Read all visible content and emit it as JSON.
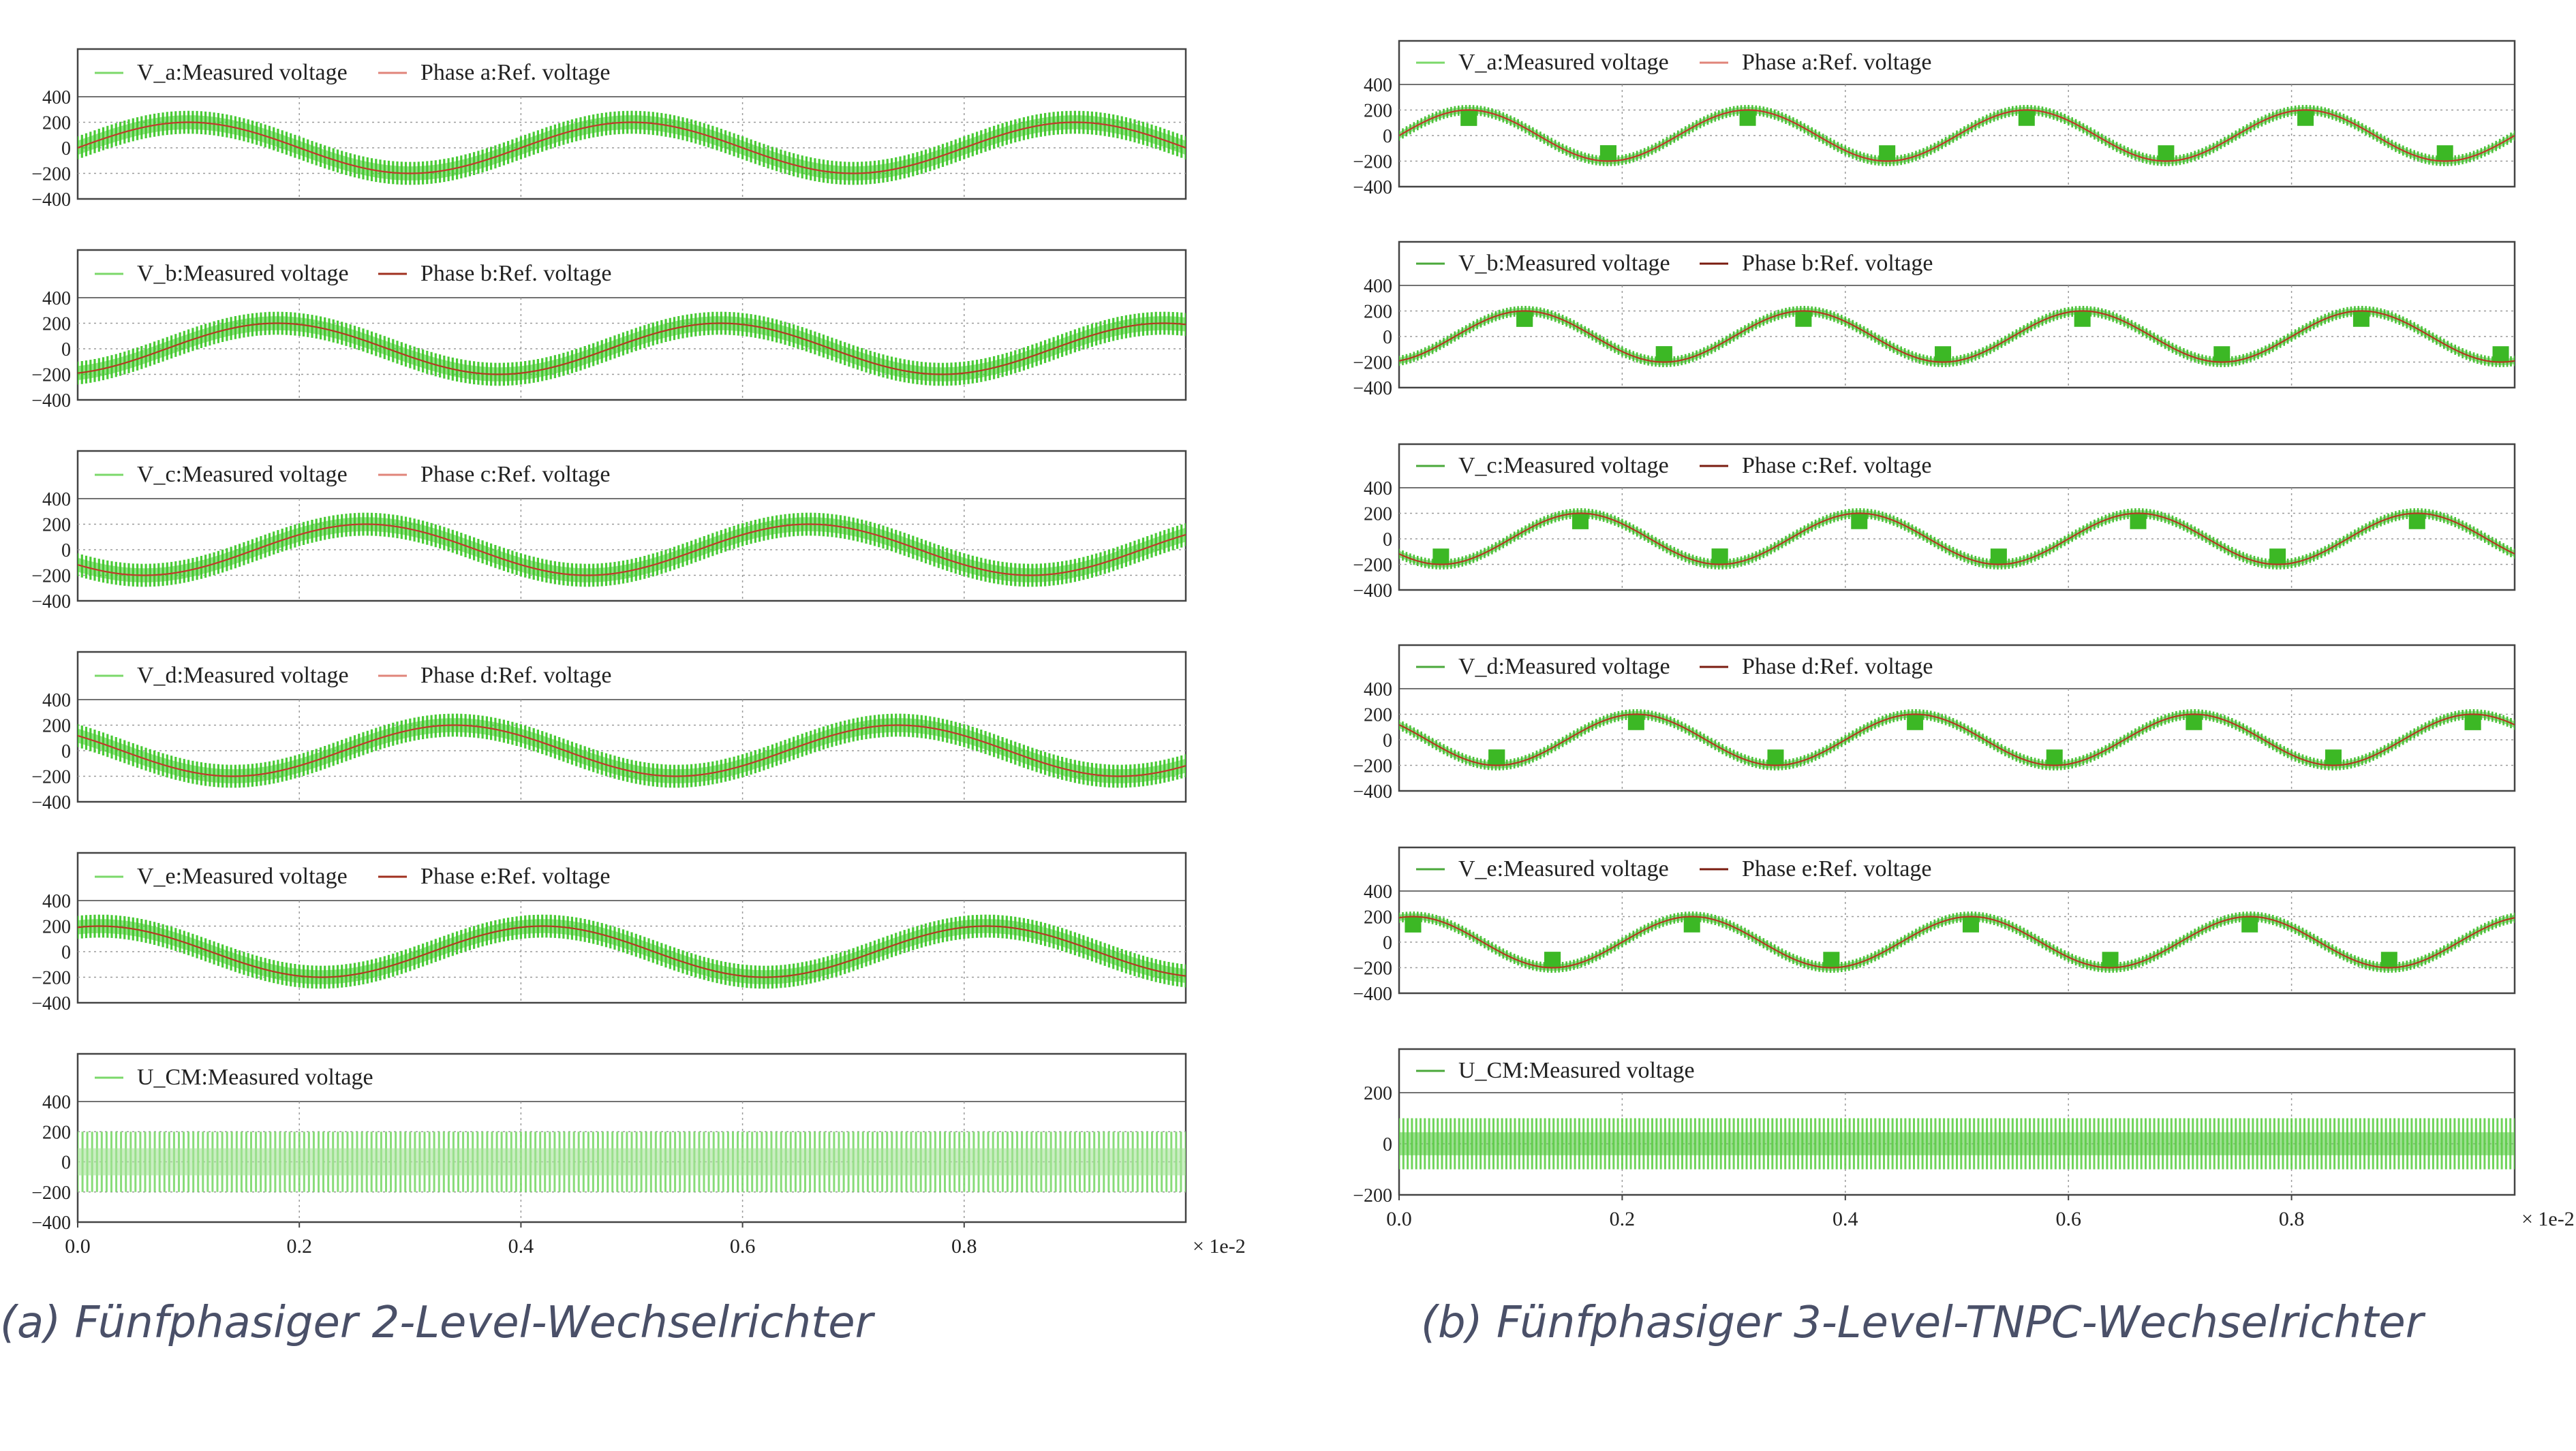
{
  "captions": {
    "left": "(a) Fünfphasiger 2-Level-Wechselrichter",
    "right": "(b) Fünfphasiger 3-Level-TNPC-Wechselrichter"
  },
  "colors": {
    "measured": "#3fc72a",
    "measured_legend": "#7bd86a",
    "reference": "#c0392b",
    "reference_dark": "#7a1c10",
    "grid": "#9a9a9a",
    "frame": "#444444",
    "caption": "#4a5068"
  },
  "chart_data": [
    {
      "type": "line",
      "title": "(a) Fünfphasiger 2-Level-Wechselrichter",
      "x_range": [
        0.0,
        1.0
      ],
      "x_ticks": [
        "0.0",
        "0.2",
        "0.4",
        "0.6",
        "0.8"
      ],
      "x_multiplier": "× 1e-2",
      "fundamental_period": 0.4,
      "panels": [
        {
          "ylim": [
            -400,
            400
          ],
          "y_ticks": [
            "400",
            "200",
            "0",
            "−200",
            "−400"
          ],
          "grid": true,
          "legend": [
            {
              "label": "V_a:Measured voltage",
              "color": "#7bd86a"
            },
            {
              "label": "Phase a:Ref. voltage",
              "color": "#e0847a"
            }
          ],
          "series": [
            {
              "name": "V_a:Measured voltage",
              "kind": "measured_pwm",
              "amplitude": 200,
              "phase_deg": 0,
              "levels": 2,
              "envelope": 300
            },
            {
              "name": "Phase a:Ref. voltage",
              "kind": "sine",
              "amplitude": 200,
              "phase_deg": 0
            }
          ]
        },
        {
          "ylim": [
            -400,
            400
          ],
          "y_ticks": [
            "400",
            "200",
            "0",
            "−200",
            "−400"
          ],
          "grid": true,
          "legend": [
            {
              "label": "V_b:Measured voltage",
              "color": "#7bd86a"
            },
            {
              "label": "Phase b:Ref. voltage",
              "color": "#a0301f"
            }
          ],
          "series": [
            {
              "name": "V_b:Measured voltage",
              "kind": "measured_pwm",
              "amplitude": 200,
              "phase_deg": -72,
              "levels": 2,
              "envelope": 300
            },
            {
              "name": "Phase b:Ref. voltage",
              "kind": "sine",
              "amplitude": 200,
              "phase_deg": -72
            }
          ]
        },
        {
          "ylim": [
            -400,
            400
          ],
          "y_ticks": [
            "400",
            "200",
            "0",
            "−200",
            "−400"
          ],
          "grid": true,
          "legend": [
            {
              "label": "V_c:Measured voltage",
              "color": "#7bd86a"
            },
            {
              "label": "Phase c:Ref. voltage",
              "color": "#e0847a"
            }
          ],
          "series": [
            {
              "name": "V_c:Measured voltage",
              "kind": "measured_pwm",
              "amplitude": 200,
              "phase_deg": -144,
              "levels": 2,
              "envelope": 300
            },
            {
              "name": "Phase c:Ref. voltage",
              "kind": "sine",
              "amplitude": 200,
              "phase_deg": -144
            }
          ]
        },
        {
          "ylim": [
            -400,
            400
          ],
          "y_ticks": [
            "400",
            "200",
            "0",
            "−200",
            "−400"
          ],
          "grid": true,
          "legend": [
            {
              "label": "V_d:Measured voltage",
              "color": "#7bd86a"
            },
            {
              "label": "Phase d:Ref. voltage",
              "color": "#e0847a"
            }
          ],
          "series": [
            {
              "name": "V_d:Measured voltage",
              "kind": "measured_pwm",
              "amplitude": 200,
              "phase_deg": 144,
              "levels": 2,
              "envelope": 300
            },
            {
              "name": "Phase d:Ref. voltage",
              "kind": "sine",
              "amplitude": 200,
              "phase_deg": 144
            }
          ]
        },
        {
          "ylim": [
            -400,
            400
          ],
          "y_ticks": [
            "400",
            "200",
            "0",
            "−200",
            "−400"
          ],
          "grid": true,
          "legend": [
            {
              "label": "V_e:Measured voltage",
              "color": "#7bd86a"
            },
            {
              "label": "Phase e:Ref. voltage",
              "color": "#a0301f"
            }
          ],
          "series": [
            {
              "name": "V_e:Measured voltage",
              "kind": "measured_pwm",
              "amplitude": 200,
              "phase_deg": 72,
              "levels": 2,
              "envelope": 300
            },
            {
              "name": "Phase e:Ref. voltage",
              "kind": "sine",
              "amplitude": 200,
              "phase_deg": 72
            }
          ]
        },
        {
          "ylim": [
            -400,
            400
          ],
          "y_ticks": [
            "400",
            "200",
            "0",
            "−200",
            "−400"
          ],
          "grid": true,
          "legend": [
            {
              "label": "U_CM:Measured voltage",
              "color": "#7bd86a"
            }
          ],
          "series": [
            {
              "name": "U_CM:Measured voltage",
              "kind": "common_mode",
              "amplitude": 200,
              "levels": 2
            }
          ]
        }
      ]
    },
    {
      "type": "line",
      "title": "(b) Fünfphasiger 3-Level-TNPC-Wechselrichter",
      "x_range": [
        0.0,
        1.0
      ],
      "x_ticks": [
        "0.0",
        "0.2",
        "0.4",
        "0.6",
        "0.8"
      ],
      "x_multiplier": "× 1e-2",
      "fundamental_period": 0.25,
      "panels": [
        {
          "ylim": [
            -400,
            400
          ],
          "y_ticks": [
            "400",
            "200",
            "0",
            "−200",
            "−400"
          ],
          "grid": true,
          "legend": [
            {
              "label": "V_a:Measured voltage",
              "color": "#7bd86a"
            },
            {
              "label": "Phase a:Ref. voltage",
              "color": "#e0847a"
            }
          ],
          "series": [
            {
              "name": "V_a:Measured voltage",
              "kind": "measured_pwm",
              "amplitude": 200,
              "phase_deg": 0,
              "levels": 3,
              "envelope": 250
            },
            {
              "name": "Phase a:Ref. voltage",
              "kind": "sine",
              "amplitude": 200,
              "phase_deg": 0
            }
          ]
        },
        {
          "ylim": [
            -400,
            400
          ],
          "y_ticks": [
            "400",
            "200",
            "0",
            "−200",
            "−400"
          ],
          "grid": true,
          "legend": [
            {
              "label": "V_b:Measured voltage",
              "color": "#4aa83a"
            },
            {
              "label": "Phase b:Ref. voltage",
              "color": "#7a1c10"
            }
          ],
          "series": [
            {
              "name": "V_b:Measured voltage",
              "kind": "measured_pwm",
              "amplitude": 200,
              "phase_deg": -72,
              "levels": 3,
              "envelope": 250
            },
            {
              "name": "Phase b:Ref. voltage",
              "kind": "sine",
              "amplitude": 200,
              "phase_deg": -72
            }
          ]
        },
        {
          "ylim": [
            -400,
            400
          ],
          "y_ticks": [
            "400",
            "200",
            "0",
            "−200",
            "−400"
          ],
          "grid": true,
          "legend": [
            {
              "label": "V_c:Measured voltage",
              "color": "#4aa83a"
            },
            {
              "label": "Phase c:Ref. voltage",
              "color": "#7a1c10"
            }
          ],
          "series": [
            {
              "name": "V_c:Measured voltage",
              "kind": "measured_pwm",
              "amplitude": 200,
              "phase_deg": -144,
              "levels": 3,
              "envelope": 250
            },
            {
              "name": "Phase c:Ref. voltage",
              "kind": "sine",
              "amplitude": 200,
              "phase_deg": -144
            }
          ]
        },
        {
          "ylim": [
            -400,
            400
          ],
          "y_ticks": [
            "400",
            "200",
            "0",
            "−200",
            "−400"
          ],
          "grid": true,
          "legend": [
            {
              "label": "V_d:Measured voltage",
              "color": "#4aa83a"
            },
            {
              "label": "Phase d:Ref. voltage",
              "color": "#7a1c10"
            }
          ],
          "series": [
            {
              "name": "V_d:Measured voltage",
              "kind": "measured_pwm",
              "amplitude": 200,
              "phase_deg": 144,
              "levels": 3,
              "envelope": 250
            },
            {
              "name": "Phase d:Ref. voltage",
              "kind": "sine",
              "amplitude": 200,
              "phase_deg": 144
            }
          ]
        },
        {
          "ylim": [
            -400,
            400
          ],
          "y_ticks": [
            "400",
            "200",
            "0",
            "−200",
            "−400"
          ],
          "grid": true,
          "legend": [
            {
              "label": "V_e:Measured voltage",
              "color": "#4aa83a"
            },
            {
              "label": "Phase e:Ref. voltage",
              "color": "#7a1c10"
            }
          ],
          "series": [
            {
              "name": "V_e:Measured voltage",
              "kind": "measured_pwm",
              "amplitude": 200,
              "phase_deg": 72,
              "levels": 3,
              "envelope": 250
            },
            {
              "name": "Phase e:Ref. voltage",
              "kind": "sine",
              "amplitude": 200,
              "phase_deg": 72
            }
          ]
        },
        {
          "ylim": [
            -200,
            200
          ],
          "y_ticks": [
            "200",
            "0",
            "−200"
          ],
          "grid": true,
          "legend": [
            {
              "label": "U_CM:Measured voltage",
              "color": "#4aa83a"
            }
          ],
          "series": [
            {
              "name": "U_CM:Measured voltage",
              "kind": "common_mode",
              "amplitude": 100,
              "levels": 3
            }
          ]
        }
      ]
    }
  ]
}
